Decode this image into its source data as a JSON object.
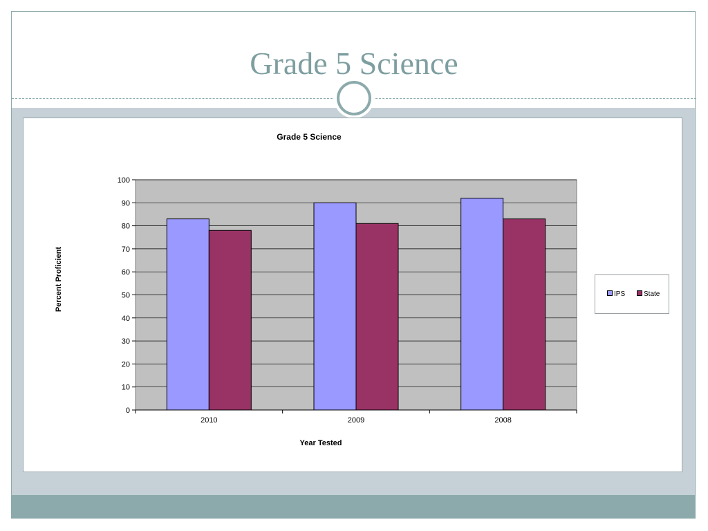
{
  "slide": {
    "title": "Grade 5 Science",
    "colors": {
      "title": "#7e9ea0",
      "band": "#c5d1d7",
      "footer": "#8caaab"
    }
  },
  "chart_data": {
    "type": "bar",
    "title": "Grade 5 Science",
    "xlabel": "Year Tested",
    "ylabel": "Percent Proficient",
    "categories": [
      "2010",
      "2009",
      "2008"
    ],
    "series": [
      {
        "name": "IPS",
        "values": [
          83,
          90,
          92
        ],
        "color": "#9999ff"
      },
      {
        "name": "State",
        "values": [
          78,
          81,
          83
        ],
        "color": "#993366"
      }
    ],
    "ylim": [
      0,
      100
    ],
    "yticks": [
      "0",
      "10",
      "20",
      "30",
      "40",
      "50",
      "60",
      "70",
      "80",
      "90",
      "100"
    ],
    "grid": true,
    "plot_background": "#c0c0c0",
    "legend_position": "right"
  }
}
